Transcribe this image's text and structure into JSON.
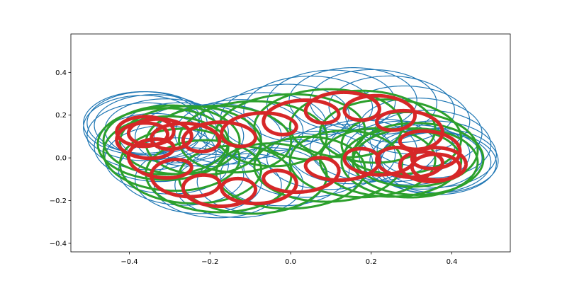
{
  "chart_data": {
    "type": "line",
    "title": "",
    "xlabel": "",
    "ylabel": "",
    "xlim": [
      -0.545,
      0.545
    ],
    "ylim": [
      -0.44,
      0.58
    ],
    "grid": false,
    "legend": "none",
    "x_ticks": [
      {
        "value": -0.4,
        "label": "−0.4"
      },
      {
        "value": -0.2,
        "label": "−0.2"
      },
      {
        "value": 0.0,
        "label": "0.0"
      },
      {
        "value": 0.2,
        "label": "0.2"
      },
      {
        "value": 0.4,
        "label": "0.4"
      }
    ],
    "y_ticks": [
      {
        "value": -0.4,
        "label": "−0.4"
      },
      {
        "value": -0.2,
        "label": "−0.2"
      },
      {
        "value": 0.0,
        "label": "0.0"
      },
      {
        "value": 0.2,
        "label": "0.2"
      },
      {
        "value": 0.4,
        "label": "0.4"
      }
    ],
    "series": [
      {
        "color": "#1f77b4",
        "stroke_width": 1.2,
        "curve": {
          "rotation_periods": 1,
          "waves": 3,
          "wave_amp": 0.09,
          "loop_radius": 0.145,
          "loop_freq": 40,
          "x_scale": 1.0,
          "y_scale": 0.93,
          "y_offset": 0.07,
          "samples": 9000
        }
      },
      {
        "color": "#2ca02c",
        "stroke_width": 3.0,
        "curve": {
          "rotation_periods": 1,
          "waves": 3,
          "wave_amp": 0.05,
          "loop_radius": 0.16,
          "loop_freq": 21,
          "x_scale": 0.86,
          "y_scale": 0.72,
          "y_offset": 0.03,
          "samples": 6000
        }
      },
      {
        "color": "#d62728",
        "stroke_width": 5.0,
        "curve": {
          "rotation_periods": 1,
          "waves": 3,
          "wave_amp": 0.07,
          "loop_radius": 0.065,
          "loop_freq": 22,
          "x_scale": 1.0,
          "y_scale": 1.0,
          "y_offset": 0.04,
          "samples": 7000
        }
      }
    ]
  }
}
